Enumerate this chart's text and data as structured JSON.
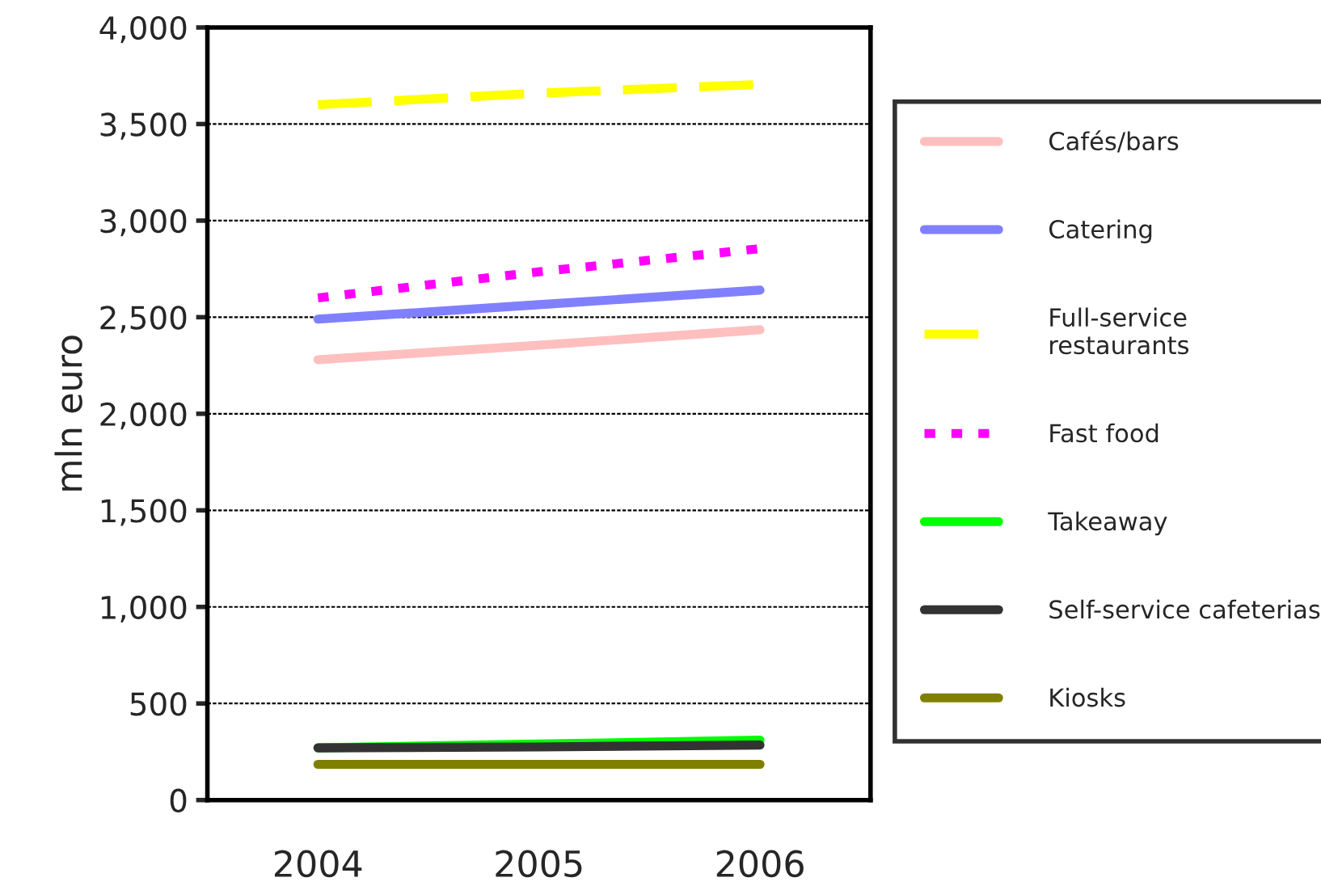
{
  "chart_data": {
    "type": "line",
    "ylabel": "mln euro",
    "categories": [
      "2004",
      "2005",
      "2006"
    ],
    "series": [
      {
        "name": "Cafés/bars",
        "color": "#ffbfbf",
        "values": [
          2280,
          2355,
          2435
        ],
        "line_style": "solid"
      },
      {
        "name": "Catering",
        "color": "#8080ff",
        "values": [
          2490,
          2565,
          2640
        ],
        "line_style": "solid"
      },
      {
        "name": "Full-service\nrestaurants",
        "color": "#ffff00",
        "values": [
          3600,
          3660,
          3705
        ],
        "line_style": "dashed"
      },
      {
        "name": "Fast food",
        "color": "#ff00ff",
        "values": [
          2600,
          2735,
          2855
        ],
        "line_style": "dotted"
      },
      {
        "name": "Takeaway",
        "color": "#00ff00",
        "values": [
          270,
          290,
          310
        ],
        "line_style": "solid"
      },
      {
        "name": "Self-service cafeterias",
        "color": "#333333",
        "values": [
          270,
          275,
          285
        ],
        "line_style": "solid"
      },
      {
        "name": "Kiosks",
        "color": "#808000",
        "values": [
          185,
          185,
          185
        ],
        "line_style": "solid"
      }
    ],
    "ylim": [
      0,
      4000
    ],
    "yticks": [
      {
        "value": 0,
        "label": "0"
      },
      {
        "value": 500,
        "label": "500"
      },
      {
        "value": 1000,
        "label": "1,000"
      },
      {
        "value": 1500,
        "label": "1,500"
      },
      {
        "value": 2000,
        "label": "2,000"
      },
      {
        "value": 2500,
        "label": "2,500"
      },
      {
        "value": 3000,
        "label": "3,000"
      },
      {
        "value": 3500,
        "label": "3,500"
      },
      {
        "value": 4000,
        "label": "4,000"
      }
    ],
    "grid": "y",
    "legend": "right",
    "marker": "none"
  }
}
